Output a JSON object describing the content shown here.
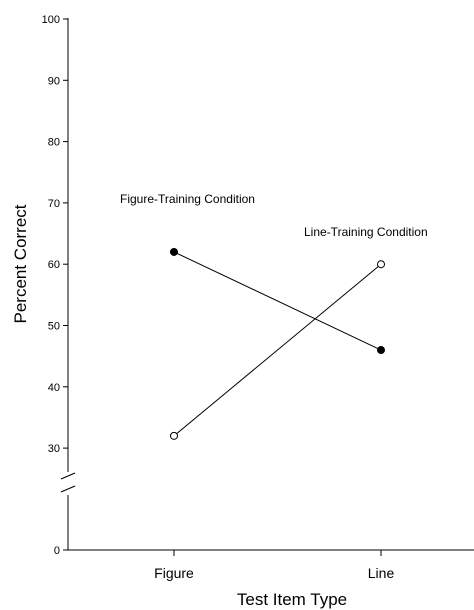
{
  "chart_data": {
    "type": "line",
    "xlabel": "Test Item Type",
    "ylabel": "Percent Correct",
    "categories": [
      "Figure",
      "Line"
    ],
    "series": [
      {
        "name": "Figure-Training Condition",
        "values": [
          62,
          46
        ],
        "marker": "filled-circle",
        "color": "#000000"
      },
      {
        "name": "Line-Training Condition",
        "values": [
          32,
          60
        ],
        "marker": "open-circle",
        "color": "#000000"
      }
    ],
    "y_ticks": [
      "0",
      "30",
      "40",
      "50",
      "60",
      "70",
      "80",
      "90",
      "100"
    ],
    "axis_break": [
      0,
      25
    ],
    "ylim": [
      0,
      100
    ],
    "grid": false,
    "legend": "none"
  }
}
